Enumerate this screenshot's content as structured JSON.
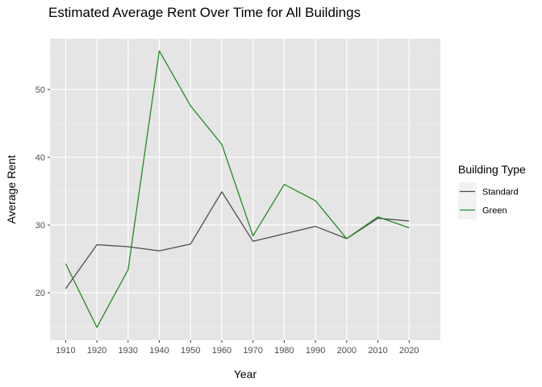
{
  "chart_data": {
    "type": "line",
    "title": "Estimated Average Rent Over Time for All Buildings",
    "xlabel": "Year",
    "ylabel": "Average Rent",
    "x": [
      1910,
      1920,
      1930,
      1940,
      1950,
      1960,
      1970,
      1980,
      1990,
      2000,
      2010,
      2020
    ],
    "x_ticks": [
      1910,
      1920,
      1930,
      1940,
      1950,
      1960,
      1970,
      1980,
      1990,
      2000,
      2010,
      2020
    ],
    "y_ticks": [
      20,
      30,
      40,
      50
    ],
    "xlim": [
      1905,
      2030
    ],
    "ylim": [
      13.0,
      57.5
    ],
    "grid": true,
    "legend": {
      "title": "Building Type",
      "placement": "right"
    },
    "series": [
      {
        "name": "Standard",
        "color": "#4d4d4d",
        "values": [
          20.6,
          27.1,
          26.8,
          26.2,
          27.2,
          34.9,
          27.6,
          28.7,
          29.8,
          28.0,
          31.0,
          30.6
        ]
      },
      {
        "name": "Green",
        "color": "#228b22",
        "values": [
          24.3,
          14.9,
          23.4,
          55.7,
          47.6,
          41.9,
          28.4,
          36.0,
          33.6,
          28.0,
          31.2,
          29.6
        ]
      }
    ]
  }
}
